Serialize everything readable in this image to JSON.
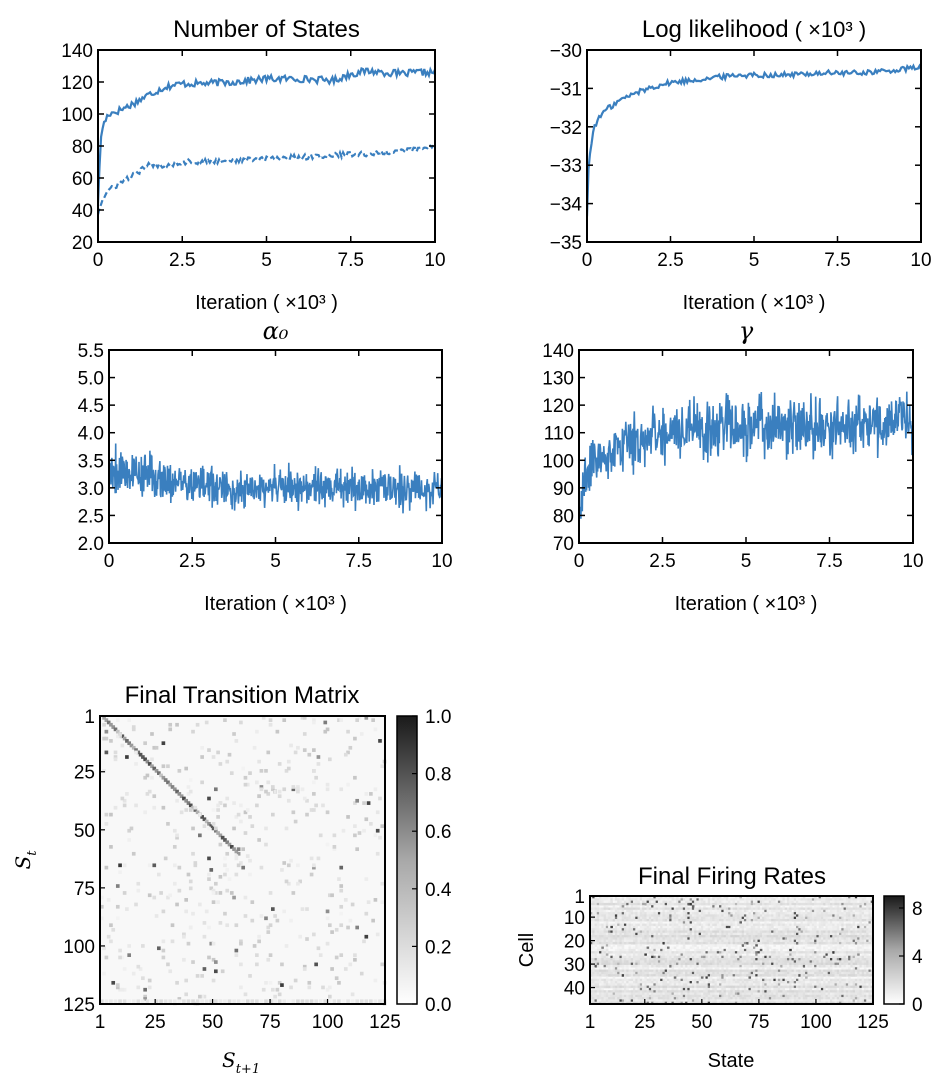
{
  "chart_data": [
    {
      "id": "states",
      "type": "line",
      "title": "Number of States",
      "xlabel": "Iteration ( ×10³ )",
      "ylabel": "",
      "xlim": [
        0,
        10
      ],
      "ylim": [
        20,
        140
      ],
      "xticks": [
        "0",
        "2.5",
        "5",
        "7.5",
        "10"
      ],
      "yticks": [
        "20",
        "40",
        "60",
        "80",
        "100",
        "120",
        "140"
      ],
      "grid": false,
      "color": "#3a7fbf",
      "series": [
        {
          "style": "solid",
          "x": [
            0,
            0.1,
            0.3,
            0.6,
            1,
            1.5,
            2,
            2.5,
            3,
            4,
            5,
            6,
            7,
            7.5,
            8,
            8.5,
            9,
            9.5,
            10
          ],
          "y": [
            45,
            90,
            100,
            102,
            106,
            112,
            117,
            119,
            119,
            120,
            122,
            122,
            121,
            125,
            127,
            126,
            125,
            126,
            126
          ]
        },
        {
          "style": "dashed",
          "x": [
            0,
            0.1,
            0.3,
            0.6,
            1,
            1.5,
            2,
            2.5,
            3,
            4,
            5,
            6,
            7,
            7.5,
            8,
            8.5,
            9,
            9.5,
            10
          ],
          "y": [
            38,
            45,
            52,
            56,
            61,
            68,
            68,
            70,
            70,
            71,
            72,
            73,
            74,
            75,
            75,
            76,
            77,
            78,
            80
          ]
        }
      ]
    },
    {
      "id": "loglik",
      "type": "line",
      "title": "Log likelihood",
      "title_suffix": "( ×10³ )",
      "xlabel": "Iteration ( ×10³ )",
      "ylabel": "",
      "xlim": [
        0,
        10
      ],
      "ylim": [
        -35,
        -30
      ],
      "xticks": [
        "0",
        "2.5",
        "5",
        "7.5",
        "10"
      ],
      "yticks": [
        "−35",
        "−34",
        "−33",
        "−32",
        "−31",
        "−30"
      ],
      "grid": false,
      "color": "#3a7fbf",
      "series": [
        {
          "style": "solid",
          "x": [
            0,
            0.05,
            0.2,
            0.5,
            1,
            1.5,
            2,
            2.5,
            3,
            4,
            4.5,
            5,
            6,
            7,
            8,
            9,
            10
          ],
          "y": [
            -34.3,
            -33,
            -32,
            -31.6,
            -31.3,
            -31.1,
            -30.95,
            -30.85,
            -30.8,
            -30.7,
            -30.65,
            -30.65,
            -30.65,
            -30.6,
            -30.6,
            -30.55,
            -30.45
          ]
        }
      ]
    },
    {
      "id": "alpha0",
      "type": "line",
      "title": "α₀",
      "xlabel": "Iteration ( ×10³ )",
      "ylabel": "",
      "xlim": [
        0,
        10
      ],
      "ylim": [
        2.0,
        5.5
      ],
      "xticks": [
        "0",
        "2.5",
        "5",
        "7.5",
        "10"
      ],
      "yticks": [
        "2.0",
        "2.5",
        "3.0",
        "3.5",
        "4.0",
        "4.5",
        "5.0",
        "5.5"
      ],
      "grid": false,
      "color": "#3a7fbf",
      "series": [
        {
          "style": "solid",
          "x": [
            0,
            0.5,
            1,
            1.5,
            2,
            2.5,
            3,
            3.5,
            4,
            5,
            6,
            7,
            8,
            9,
            10
          ],
          "y": [
            3.4,
            3.3,
            3.25,
            3.2,
            3.1,
            3.05,
            3.05,
            2.95,
            2.95,
            3.0,
            3.0,
            3.0,
            3.0,
            3.0,
            3.0
          ],
          "amplitude": [
            0.5,
            0.35,
            0.35,
            0.35,
            0.3,
            0.3,
            0.3,
            0.3,
            0.3,
            0.3,
            0.3,
            0.3,
            0.3,
            0.3,
            0.3
          ]
        }
      ]
    },
    {
      "id": "gamma",
      "type": "line",
      "title": "γ",
      "xlabel": "Iteration ( ×10³ )",
      "ylabel": "",
      "xlim": [
        0,
        10
      ],
      "ylim": [
        70,
        140
      ],
      "xticks": [
        "0",
        "2.5",
        "5",
        "7.5",
        "10"
      ],
      "yticks": [
        "70",
        "80",
        "90",
        "100",
        "110",
        "120",
        "130",
        "140"
      ],
      "grid": false,
      "color": "#3a7fbf",
      "series": [
        {
          "style": "solid",
          "x": [
            0,
            0.2,
            0.5,
            1,
            1.5,
            2,
            2.5,
            3,
            4,
            5,
            6,
            7,
            8,
            9,
            10
          ],
          "y": [
            78,
            95,
            100,
            104,
            106,
            108,
            110,
            111,
            111,
            111,
            112,
            112,
            113,
            113,
            114
          ],
          "amplitude": [
            4,
            7,
            8,
            8,
            9,
            9,
            9,
            9,
            9,
            9,
            9,
            9,
            9,
            9,
            9
          ]
        }
      ]
    },
    {
      "id": "transition",
      "type": "heatmap",
      "title": "Final Transition Matrix",
      "xlabel": "S",
      "xlabel_sub": "t+1",
      "ylabel": "S",
      "ylabel_sub": "t",
      "size": 125,
      "xticks": [
        "1",
        "25",
        "50",
        "75",
        "100",
        "125"
      ],
      "yticks": [
        "1",
        "25",
        "50",
        "75",
        "100",
        "125"
      ],
      "colorbar": {
        "range": [
          0,
          1
        ],
        "ticks": [
          "0.0",
          "0.2",
          "0.4",
          "0.6",
          "0.8",
          "1.0"
        ]
      },
      "colormap": "Greys"
    },
    {
      "id": "firing",
      "type": "heatmap",
      "title": "Final Firing Rates",
      "xlabel": "State",
      "ylabel": "Cell",
      "rows": 47,
      "cols": 125,
      "xticks": [
        "1",
        "25",
        "50",
        "75",
        "100",
        "125"
      ],
      "yticks": [
        "1",
        "10",
        "20",
        "30",
        "40"
      ],
      "colorbar": {
        "range": [
          0,
          9
        ],
        "ticks": [
          "0",
          "4",
          "8"
        ]
      },
      "colormap": "Greys"
    }
  ]
}
